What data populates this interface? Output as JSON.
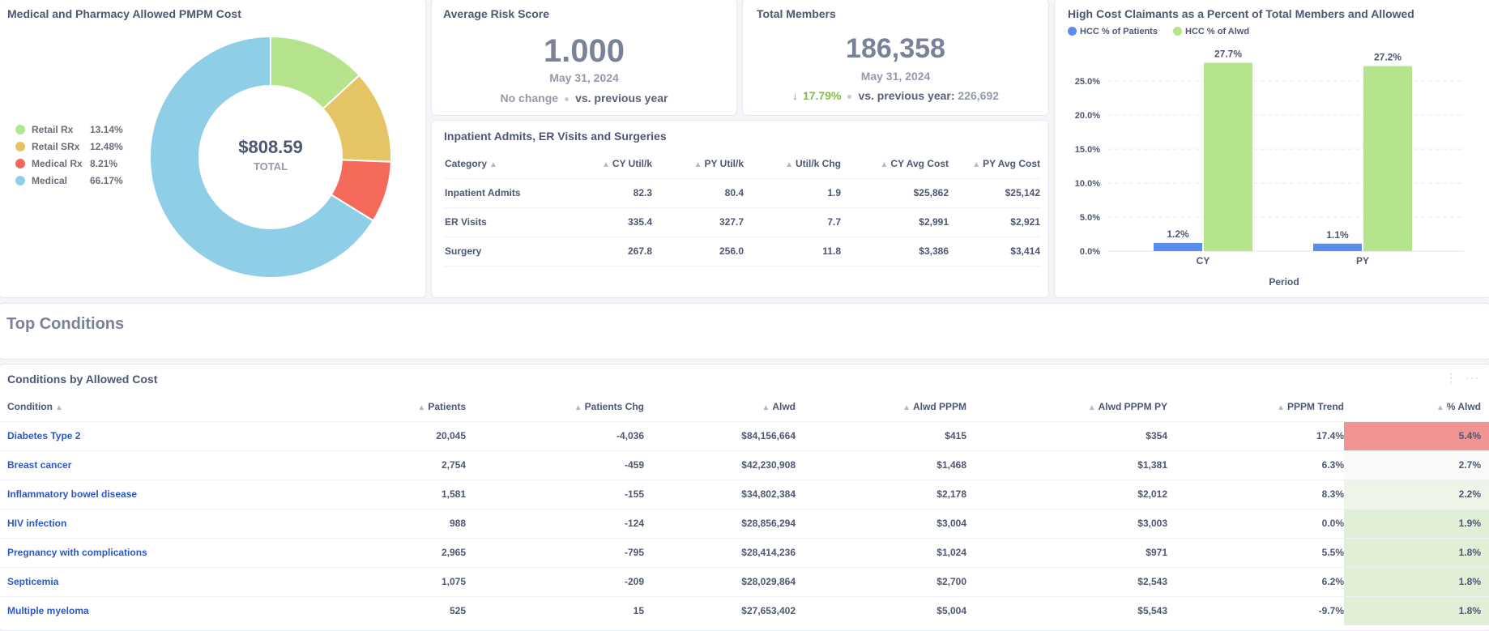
{
  "donut": {
    "title": "Medical and Pharmacy Allowed PMPM Cost",
    "total_value": "$808.59",
    "total_label": "TOTAL",
    "segments": [
      {
        "label": "Retail Rx",
        "pct_text": "13.14%",
        "value": 13.14,
        "color": "#b5e48c"
      },
      {
        "label": "Retail SRx",
        "pct_text": "12.48%",
        "value": 12.48,
        "color": "#e5c466"
      },
      {
        "label": "Medical Rx",
        "pct_text": "8.21%",
        "value": 8.21,
        "color": "#f4695a"
      },
      {
        "label": "Medical",
        "pct_text": "66.17%",
        "value": 66.17,
        "color": "#8ecee6"
      }
    ]
  },
  "risk": {
    "title": "Average Risk Score",
    "value": "1.000",
    "date": "May 31, 2024",
    "change": "No change",
    "vs": "vs. previous year"
  },
  "members": {
    "title": "Total Members",
    "value": "186,358",
    "date": "May 31, 2024",
    "change": "17.79%",
    "vs": "vs. previous year:",
    "prev": "226,692"
  },
  "util": {
    "title": "Inpatient Admits, ER Visits and Surgeries",
    "columns": [
      "Category",
      "CY Util/k",
      "PY Util/k",
      "Util/k Chg",
      "CY Avg Cost",
      "PY Avg Cost"
    ],
    "rows": [
      [
        "Inpatient Admits",
        "82.3",
        "80.4",
        "1.9",
        "$25,862",
        "$25,142"
      ],
      [
        "ER Visits",
        "335.4",
        "327.7",
        "7.7",
        "$2,991",
        "$2,921"
      ],
      [
        "Surgery",
        "267.8",
        "256.0",
        "11.8",
        "$3,386",
        "$3,414"
      ]
    ]
  },
  "hcc": {
    "title": "High Cost Claimants as a Percent of Total Members and Allowed",
    "legend_patients": "HCC % of Patients",
    "legend_alwd": "HCC % of Alwd",
    "color_patients": "#5b8def",
    "color_alwd": "#b5e48c"
  },
  "chart_data": {
    "type": "bar",
    "title": "High Cost Claimants as a Percent of Total Members and Allowed",
    "categories": [
      "CY",
      "PY"
    ],
    "series": [
      {
        "name": "HCC % of Patients",
        "values": [
          1.2,
          1.1
        ],
        "labels": [
          "1.2%",
          "1.1%"
        ]
      },
      {
        "name": "HCC % of Alwd",
        "values": [
          27.7,
          27.2
        ],
        "labels": [
          "27.7%",
          "27.2%"
        ]
      }
    ],
    "xlabel": "Period",
    "ylabel": "",
    "ylim": [
      0,
      28
    ],
    "yticks": [
      "0.0%",
      "5.0%",
      "10.0%",
      "15.0%",
      "20.0%",
      "25.0%"
    ],
    "ytick_values": [
      0,
      5,
      10,
      15,
      20,
      25
    ]
  },
  "section": {
    "title": "Top Conditions"
  },
  "conditions": {
    "title": "Conditions by Allowed Cost",
    "more_icon": "more-icon",
    "columns": [
      "Condition",
      "Patients",
      "Patients Chg",
      "Alwd",
      "Alwd PPPM",
      "Alwd PPPM PY",
      "PPPM Trend",
      "% Alwd"
    ],
    "rows": [
      [
        "Diabetes Type 2",
        "20,045",
        "-4,036",
        "$84,156,664",
        "$415",
        "$354",
        "17.4%",
        "5.4%"
      ],
      [
        "Breast cancer",
        "2,754",
        "-459",
        "$42,230,908",
        "$1,468",
        "$1,381",
        "6.3%",
        "2.7%"
      ],
      [
        "Inflammatory bowel disease",
        "1,581",
        "-155",
        "$34,802,384",
        "$2,178",
        "$2,012",
        "8.3%",
        "2.2%"
      ],
      [
        "HIV infection",
        "988",
        "-124",
        "$28,856,294",
        "$3,004",
        "$3,003",
        "0.0%",
        "1.9%"
      ],
      [
        "Pregnancy with complications",
        "2,965",
        "-795",
        "$28,414,236",
        "$1,024",
        "$971",
        "5.5%",
        "1.8%"
      ],
      [
        "Septicemia",
        "1,075",
        "-209",
        "$28,029,864",
        "$2,700",
        "$2,543",
        "6.2%",
        "1.8%"
      ],
      [
        "Multiple myeloma",
        "525",
        "15",
        "$27,653,402",
        "$5,004",
        "$5,543",
        "-9.7%",
        "1.8%"
      ]
    ],
    "pct_colors": [
      "#f09393",
      "#fafbf9",
      "#eef5e8",
      "#e1efd6",
      "#e1efd6",
      "#e1efd6",
      "#e1efd6"
    ]
  }
}
